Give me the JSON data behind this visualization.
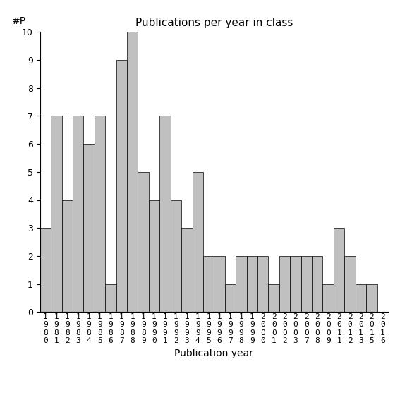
{
  "title": "Publications per year in class",
  "xlabel": "Publication year",
  "ylabel": "#P",
  "years": [
    "1980",
    "1981",
    "1982",
    "1983",
    "1984",
    "1985",
    "1986",
    "1987",
    "1988",
    "1989",
    "1990",
    "1991",
    "1992",
    "1993",
    "1994",
    "1995",
    "1996",
    "1997",
    "1998",
    "1999",
    "2000",
    "2001",
    "2002",
    "2003",
    "2007",
    "2008",
    "2009",
    "2011",
    "2012",
    "2013",
    "2015",
    "2016"
  ],
  "values": [
    3,
    7,
    4,
    7,
    6,
    7,
    1,
    9,
    10,
    5,
    4,
    7,
    4,
    3,
    5,
    2,
    2,
    1,
    2,
    2,
    2,
    1,
    2,
    2,
    2,
    2,
    1,
    3,
    2,
    1,
    1,
    0
  ],
  "bar_color": "#c0c0c0",
  "bar_edge_color": "#000000",
  "bg_color": "#ffffff",
  "ylim": [
    0,
    10
  ],
  "yticks": [
    0,
    1,
    2,
    3,
    4,
    5,
    6,
    7,
    8,
    9,
    10
  ],
  "title_fontsize": 11,
  "axis_fontsize": 10,
  "tick_fontsize": 9,
  "xtick_fontsize": 8
}
